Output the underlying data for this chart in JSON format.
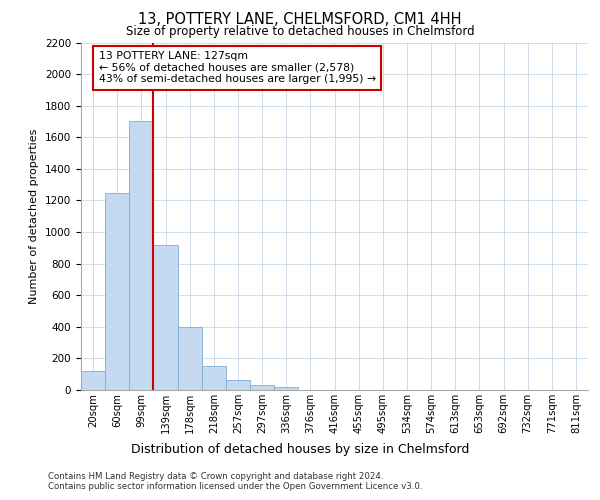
{
  "title_line1": "13, POTTERY LANE, CHELMSFORD, CM1 4HH",
  "title_line2": "Size of property relative to detached houses in Chelmsford",
  "xlabel": "Distribution of detached houses by size in Chelmsford",
  "ylabel": "Number of detached properties",
  "footnote1": "Contains HM Land Registry data © Crown copyright and database right 2024.",
  "footnote2": "Contains public sector information licensed under the Open Government Licence v3.0.",
  "bar_labels": [
    "20sqm",
    "60sqm",
    "99sqm",
    "139sqm",
    "178sqm",
    "218sqm",
    "257sqm",
    "297sqm",
    "336sqm",
    "376sqm",
    "416sqm",
    "455sqm",
    "495sqm",
    "534sqm",
    "574sqm",
    "613sqm",
    "653sqm",
    "692sqm",
    "732sqm",
    "771sqm",
    "811sqm"
  ],
  "bar_values": [
    120,
    1250,
    1700,
    920,
    400,
    150,
    65,
    30,
    20,
    0,
    0,
    0,
    0,
    0,
    0,
    0,
    0,
    0,
    0,
    0,
    0
  ],
  "bar_color": "#c5d9f1",
  "bar_edge_color": "#7bafd4",
  "vline_x": 2.5,
  "vline_color": "#cc0000",
  "ylim": [
    0,
    2200
  ],
  "yticks": [
    0,
    200,
    400,
    600,
    800,
    1000,
    1200,
    1400,
    1600,
    1800,
    2000,
    2200
  ],
  "annotation_text": "13 POTTERY LANE: 127sqm\n← 56% of detached houses are smaller (2,578)\n43% of semi-detached houses are larger (1,995) →",
  "annotation_box_color": "#ffffff",
  "annotation_box_edge": "#cc0000",
  "grid_color": "#c8d8e8",
  "bg_color": "#ffffff"
}
